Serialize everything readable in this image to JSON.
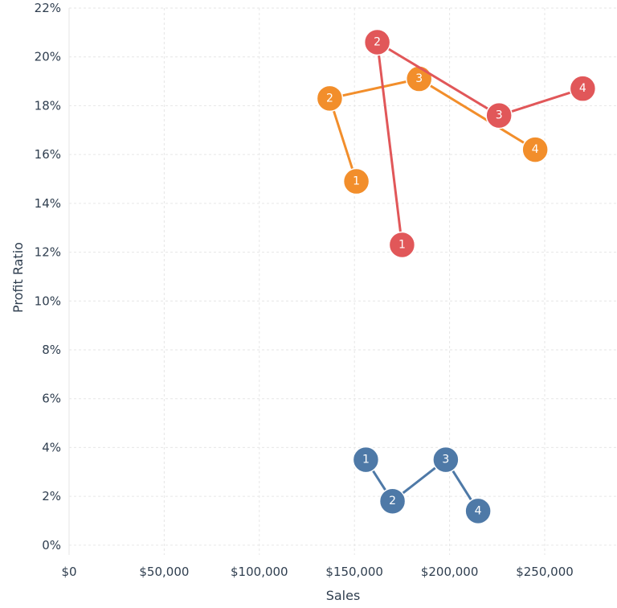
{
  "chart_data": {
    "type": "scatter",
    "title": "",
    "xlabel": "Sales",
    "ylabel": "Profit Ratio",
    "xlim": [
      0,
      288000
    ],
    "ylim": [
      -0.4,
      22
    ],
    "x_ticks": [
      0,
      50000,
      100000,
      150000,
      200000,
      250000
    ],
    "x_tick_labels": [
      "$0",
      "$50,000",
      "$100,000",
      "$150,000",
      "$200,000",
      "$250,000"
    ],
    "y_ticks": [
      0,
      2,
      4,
      6,
      8,
      10,
      12,
      14,
      16,
      18,
      20,
      22
    ],
    "y_tick_labels": [
      "0%",
      "2%",
      "4%",
      "6%",
      "8%",
      "10%",
      "12%",
      "14%",
      "16%",
      "18%",
      "20%",
      "22%"
    ],
    "grid": true,
    "connected": true,
    "series": [
      {
        "color": "#4e79a7",
        "points": [
          {
            "label": "1",
            "x": 156000,
            "y": 3.5
          },
          {
            "label": "2",
            "x": 170000,
            "y": 1.8
          },
          {
            "label": "3",
            "x": 198000,
            "y": 3.5
          },
          {
            "label": "4",
            "x": 215000,
            "y": 1.4
          }
        ]
      },
      {
        "color": "#f28e2b",
        "points": [
          {
            "label": "1",
            "x": 151000,
            "y": 14.9
          },
          {
            "label": "2",
            "x": 137000,
            "y": 18.3
          },
          {
            "label": "3",
            "x": 184000,
            "y": 19.1
          },
          {
            "label": "4",
            "x": 245000,
            "y": 16.2
          }
        ]
      },
      {
        "color": "#e15759",
        "points": [
          {
            "label": "1",
            "x": 175000,
            "y": 12.3
          },
          {
            "label": "2",
            "x": 162000,
            "y": 20.6
          },
          {
            "label": "3",
            "x": 226000,
            "y": 17.6
          },
          {
            "label": "4",
            "x": 270000,
            "y": 18.7
          }
        ]
      }
    ]
  }
}
